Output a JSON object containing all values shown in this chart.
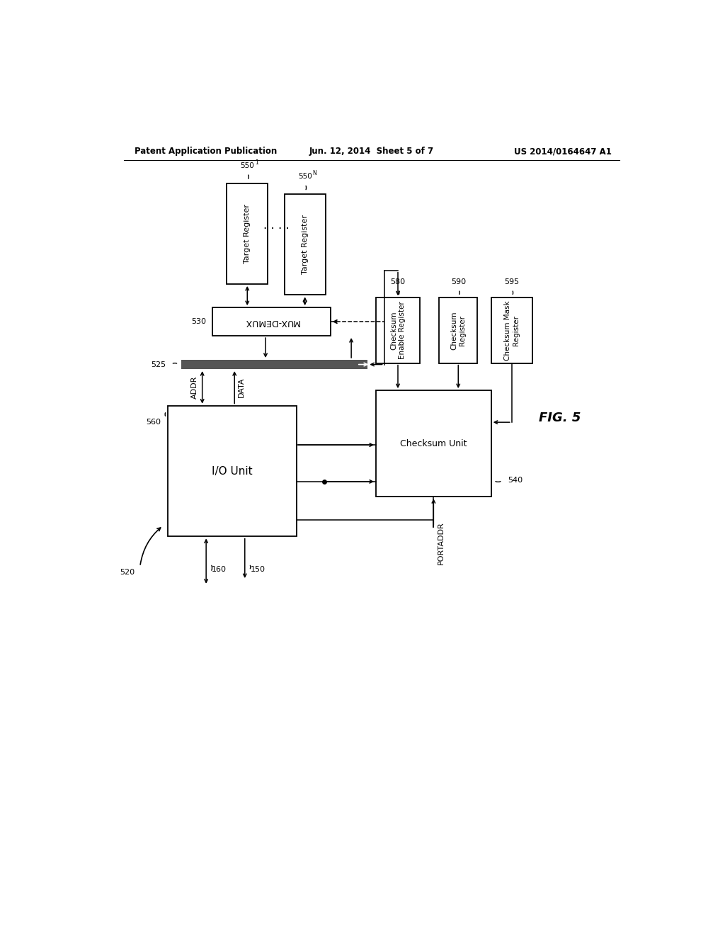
{
  "title_left": "Patent Application Publication",
  "title_center": "Jun. 12, 2014  Sheet 5 of 7",
  "title_right": "US 2014/0164647 A1",
  "fig_label": "FIG. 5",
  "background_color": "#ffffff",
  "line_color": "#000000"
}
